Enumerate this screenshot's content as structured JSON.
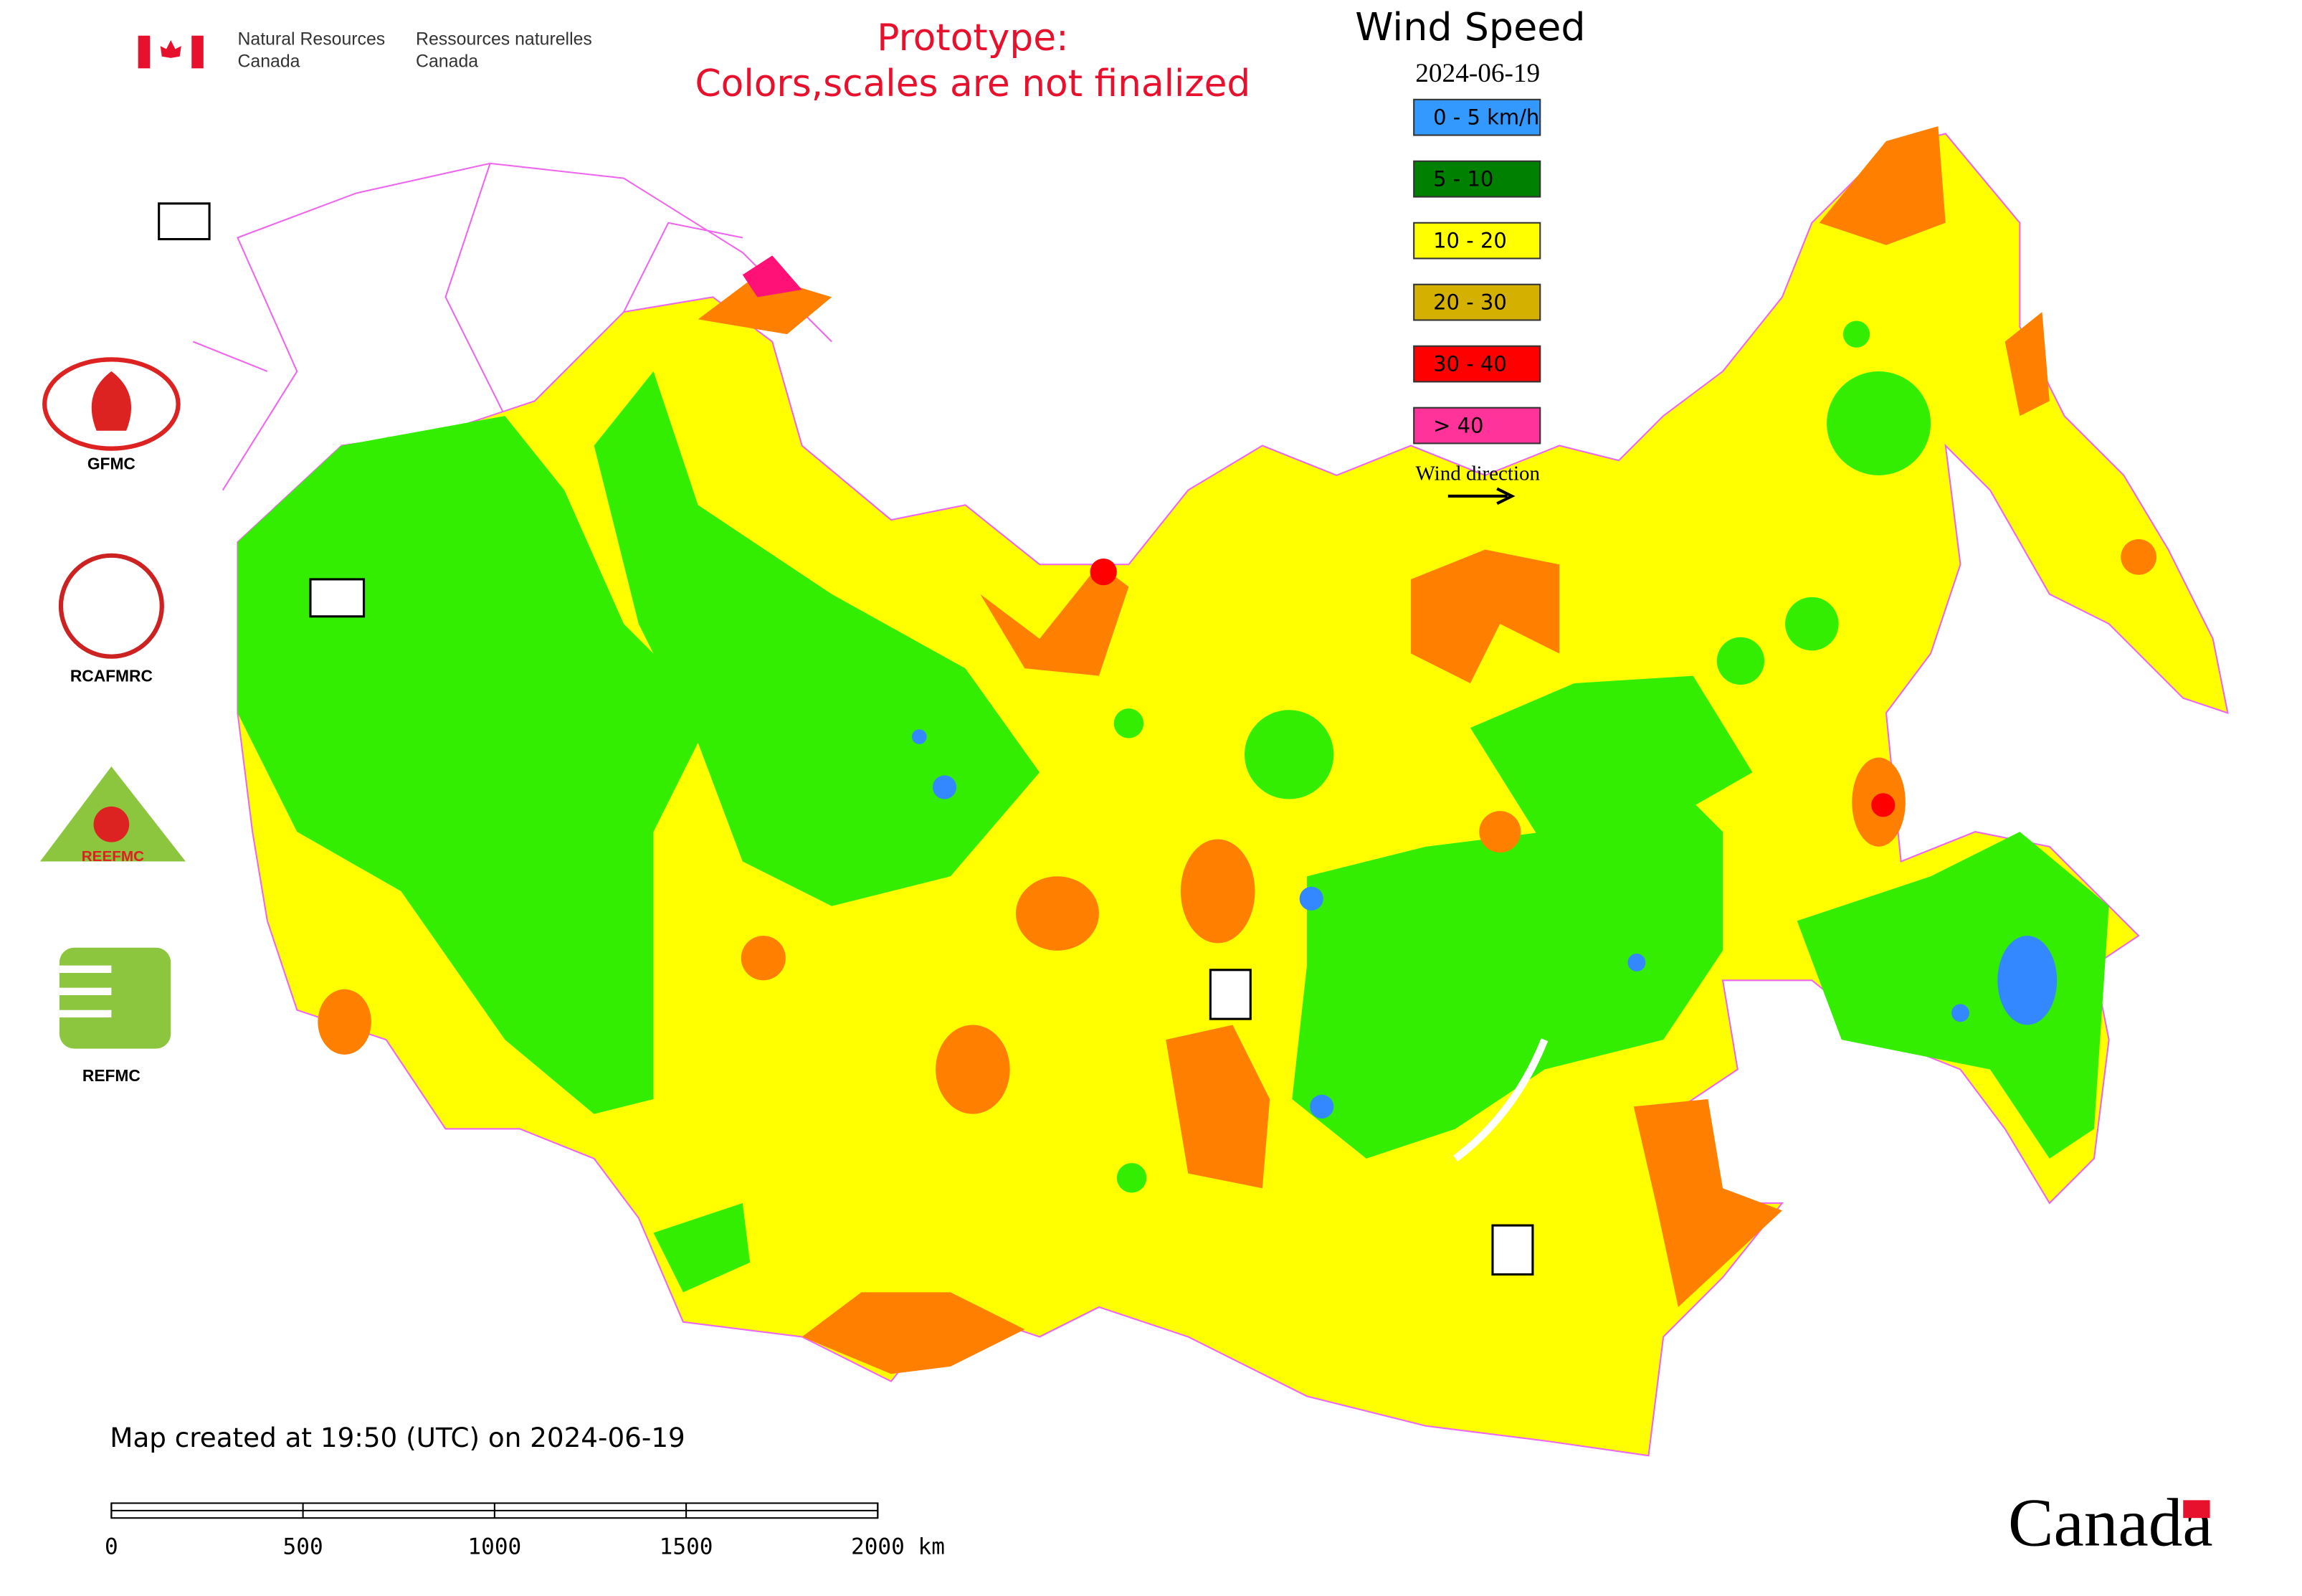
{
  "header": {
    "agency_en": [
      "Natural Resources",
      "Canada"
    ],
    "agency_fr": [
      "Ressources naturelles",
      "Canada"
    ],
    "notice": [
      "Prototype:",
      "Colors,scales are not finalized"
    ]
  },
  "legend": {
    "title": "Wind Speed",
    "date": "2024-06-19",
    "items": [
      {
        "label": "0 - 5 km/h",
        "color": "#3399ff"
      },
      {
        "label": "5 - 10",
        "color": "#008000"
      },
      {
        "label": "10 - 20",
        "color": "#ffff00"
      },
      {
        "label": "20 - 30",
        "color": "#d4b000"
      },
      {
        "label": "30 - 40",
        "color": "#ff0000"
      },
      {
        "label": "> 40",
        "color": "#ff3399"
      }
    ],
    "direction_label": "Wind direction"
  },
  "logos": [
    "GFMC",
    "RCAFMRC",
    "REEFMC",
    "REFMC"
  ],
  "footer": {
    "created": "Map created at 19:50 (UTC) on 2024-06-19",
    "wordmark": "Canada"
  },
  "scale_bar": {
    "labels": [
      "0",
      "500",
      "1000",
      "1500",
      "2000 km"
    ]
  }
}
